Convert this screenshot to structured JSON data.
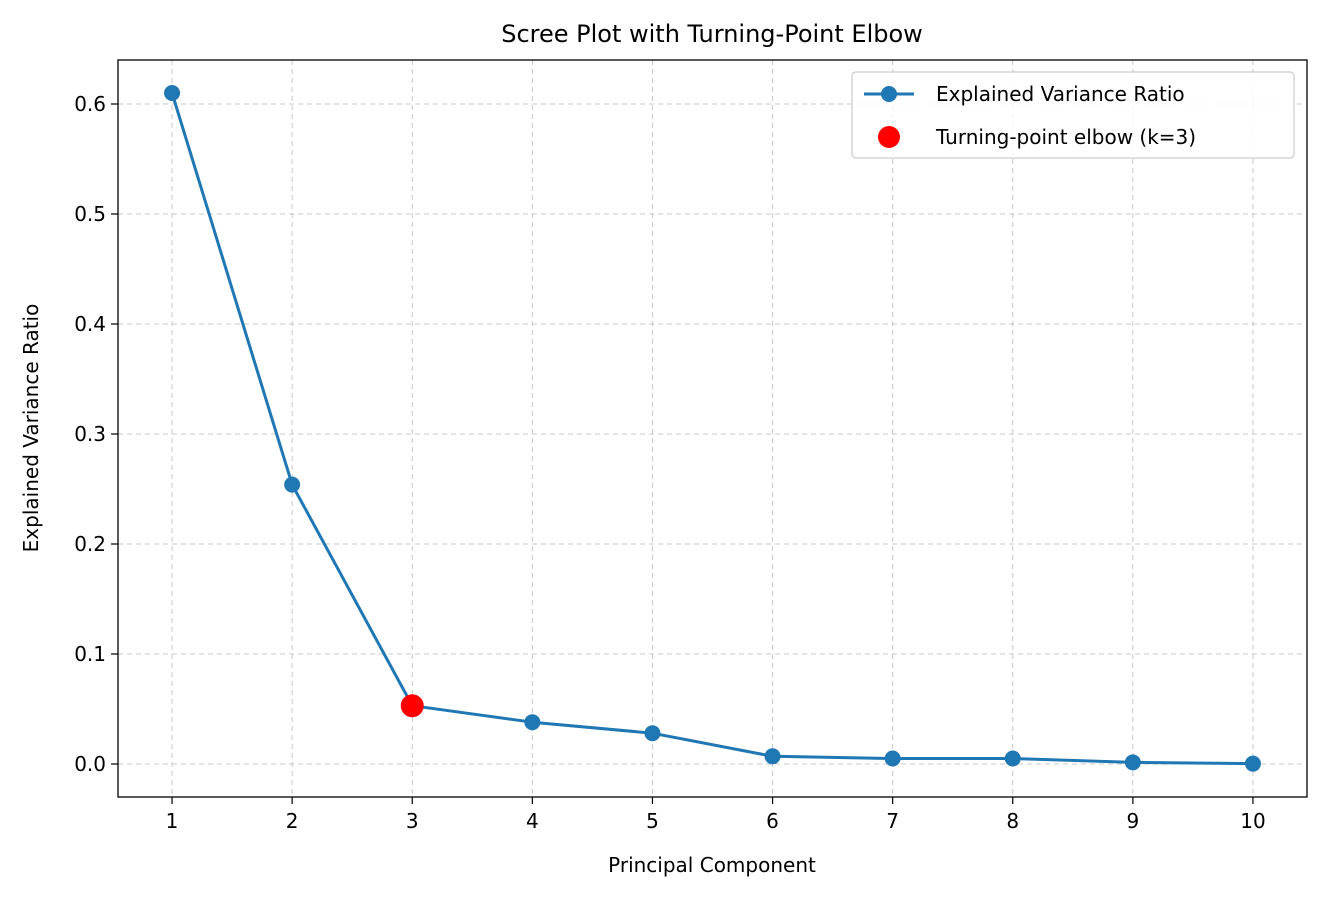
{
  "chart_data": {
    "type": "line",
    "title": "Scree Plot with Turning-Point Elbow",
    "xlabel": "Principal Component",
    "ylabel": "Explained Variance Ratio",
    "x": [
      1,
      2,
      3,
      4,
      5,
      6,
      7,
      8,
      9,
      10
    ],
    "series": [
      {
        "name": "Explained Variance Ratio",
        "values": [
          0.61,
          0.254,
          0.053,
          0.038,
          0.028,
          0.007,
          0.005,
          0.005,
          0.0015,
          0.0003
        ],
        "color": "#1f77b4"
      }
    ],
    "highlight": {
      "name": "Turning-point elbow (k=3)",
      "x": 3,
      "y": 0.053,
      "color": "#ff0000"
    },
    "xticks": [
      "1",
      "2",
      "3",
      "4",
      "5",
      "6",
      "7",
      "8",
      "9",
      "10"
    ],
    "yticks": [
      "0.0",
      "0.1",
      "0.2",
      "0.3",
      "0.4",
      "0.5",
      "0.6"
    ],
    "xlim": [
      0.55,
      10.45
    ],
    "ylim": [
      -0.03,
      0.64
    ],
    "grid": true,
    "legend_position": "top-right"
  }
}
